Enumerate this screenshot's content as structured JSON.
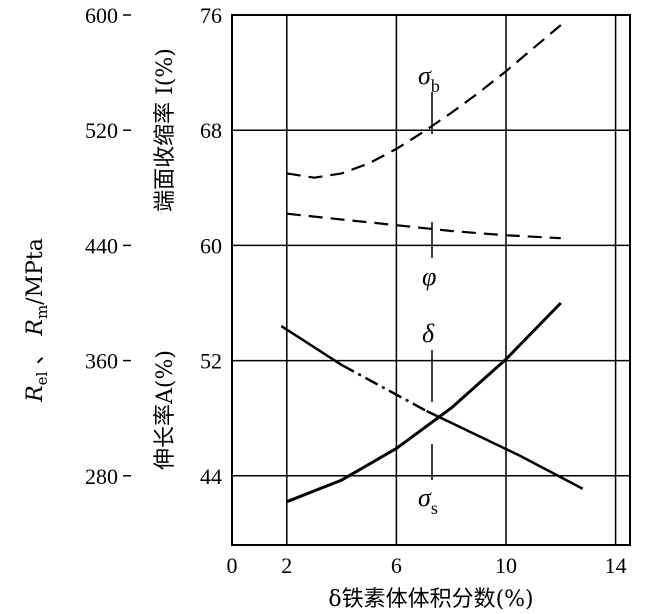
{
  "chart_data": {
    "type": "line",
    "xlabel": "δ铁素体体积分数(%)",
    "x_ticks": [
      "0",
      "2",
      "6",
      "10",
      "14"
    ],
    "xlim": [
      0,
      14
    ],
    "y_left_label": "Rel 、 Rm/MPta",
    "y_left_label_parts": {
      "r1": "R",
      "s1": "el",
      "sep": " 、 ",
      "r2": "R",
      "s2": "m",
      "unit": "/MPta"
    },
    "y_left_ticks": [
      "280",
      "360",
      "440",
      "520",
      "600"
    ],
    "y_left_lim": [
      232,
      600
    ],
    "y_mid_ticks": [
      "44",
      "52",
      "60",
      "68",
      "76"
    ],
    "y_mid_label_top": "端面收缩率 I(%)",
    "y_mid_label_bottom": "伸长率A(%)",
    "grid": true,
    "series": [
      {
        "name": "σb",
        "axis": "left",
        "style": "dashed",
        "x": [
          2,
          3,
          4,
          5,
          6,
          7,
          8,
          9,
          10,
          11,
          12
        ],
        "y": [
          490,
          487,
          490,
          497,
          507,
          519,
          532,
          546,
          561,
          577,
          593
        ]
      },
      {
        "name": "φ",
        "axis": "mid",
        "style": "dashed",
        "x": [
          2,
          4,
          6,
          8,
          10,
          12
        ],
        "y": [
          62.2,
          61.8,
          61.4,
          61.0,
          60.7,
          60.5
        ]
      },
      {
        "name": "δ",
        "axis": "mid",
        "style": "solid",
        "x": [
          2,
          4,
          6,
          8,
          10,
          12
        ],
        "y": [
          42.2,
          43.7,
          45.9,
          48.7,
          52.1,
          56.0
        ]
      },
      {
        "name": "σs",
        "axis": "left",
        "style": "solid-dashdot",
        "x": [
          1.8,
          4,
          7.1,
          10.5,
          12.8
        ],
        "y": [
          384,
          357,
          325,
          294,
          271
        ]
      }
    ],
    "curve_labels": {
      "sigma_b": {
        "main": "σ",
        "sub": "b"
      },
      "phi": {
        "main": "φ"
      },
      "delta": {
        "main": "δ"
      },
      "sigma_s": {
        "main": "σ",
        "sub": "s"
      }
    }
  }
}
